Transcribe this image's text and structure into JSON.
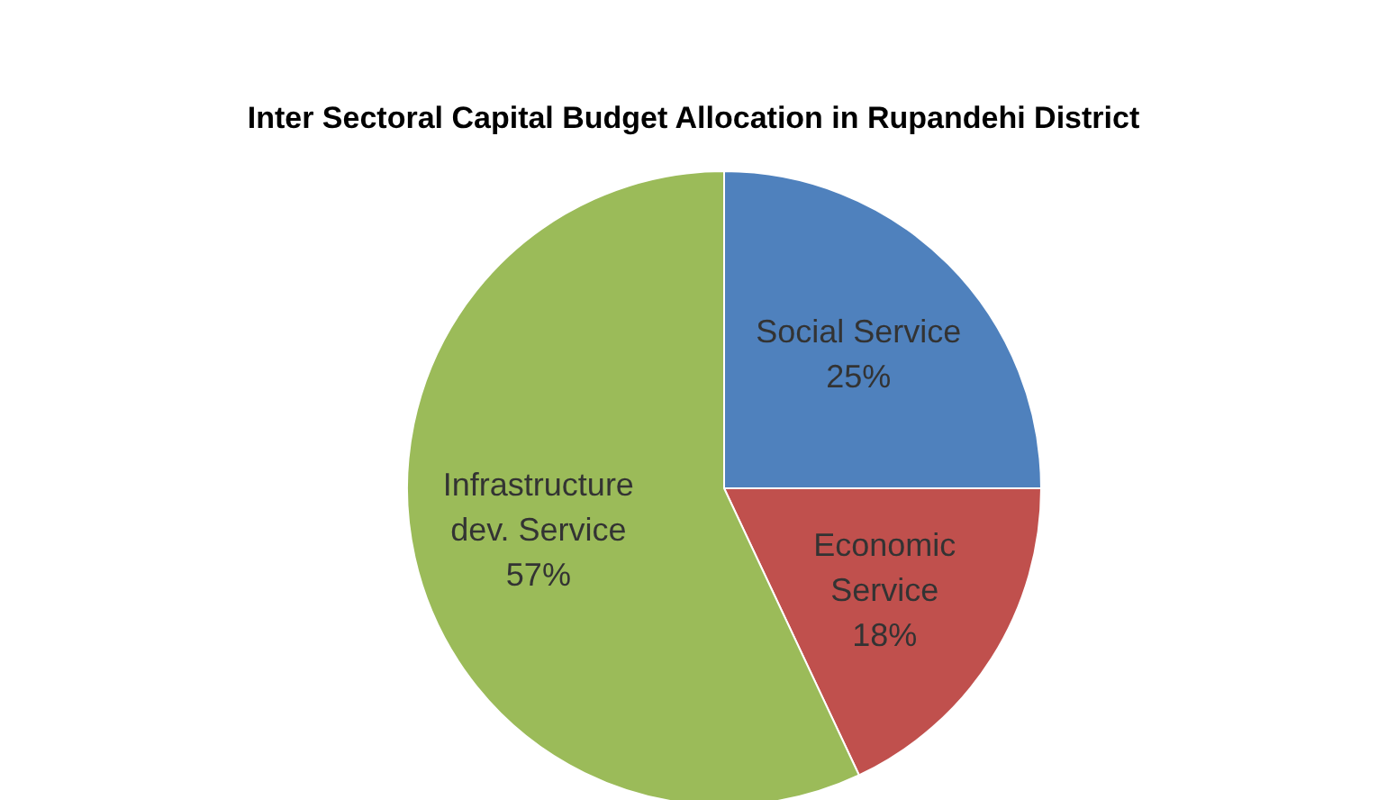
{
  "chart_data": {
    "type": "pie",
    "title": "Inter Sectoral Capital Budget Allocation in Rupandehi District",
    "categories": [
      "Social Service",
      "Economic Service",
      "Infrastructure dev. Service"
    ],
    "values": [
      25,
      18,
      57
    ],
    "colors": [
      "#4f81bd",
      "#c0504d",
      "#9bbb59"
    ],
    "value_labels": [
      "25%",
      "18%",
      "57%"
    ],
    "legend": false
  }
}
